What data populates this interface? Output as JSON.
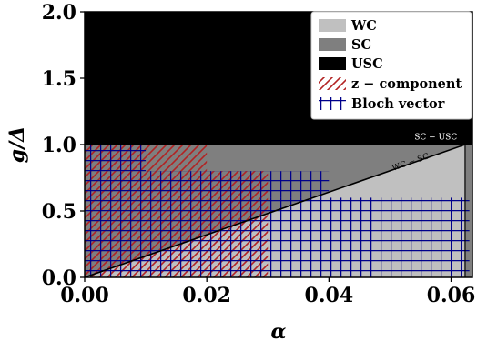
{
  "chart_data": {
    "type": "area",
    "xlabel": "α",
    "ylabel": "g/Δ",
    "xlim": [
      0,
      0.0635
    ],
    "ylim": [
      0,
      2.0
    ],
    "xticks": [
      "0.00",
      "0.02",
      "0.04",
      "0.06"
    ],
    "xtick_values": [
      0,
      0.02,
      0.04,
      0.06
    ],
    "yticks": [
      "0.0",
      "0.5",
      "1.0",
      "1.5",
      "2.0"
    ],
    "ytick_values": [
      0,
      0.5,
      1.0,
      1.5,
      2.0
    ],
    "grid": false,
    "legend_position": "top-right",
    "regions": [
      {
        "name": "WC",
        "color": "#c0c0c0"
      },
      {
        "name": "SC",
        "color": "#7f7f7f"
      },
      {
        "name": "USC",
        "color": "#000000"
      }
    ],
    "boundaries": {
      "usc_threshold_g": 1.0,
      "wc_sc_line": {
        "x": [
          0,
          0.0623
        ],
        "y": [
          0,
          1.0
        ]
      },
      "sc_usc_alpha": 0.0623
    },
    "series": [
      {
        "name": "z − component",
        "color": "#b22222",
        "pattern": "diagonal-hatch",
        "blocks": [
          {
            "x": [
              0,
              0.02
            ],
            "y": [
              0.8,
              1.0
            ]
          },
          {
            "x": [
              0,
              0.03
            ],
            "y": [
              0,
              0.8
            ]
          }
        ]
      },
      {
        "name": "Bloch vector",
        "color": "#00008b",
        "pattern": "grid-hatch",
        "blocks": [
          {
            "x": [
              0,
              0.01
            ],
            "y": [
              0.8,
              1.0
            ]
          },
          {
            "x": [
              0,
              0.04
            ],
            "y": [
              0.6,
              0.8
            ]
          },
          {
            "x": [
              0,
              0.063
            ],
            "y": [
              0,
              0.6
            ]
          }
        ]
      }
    ],
    "annotations": [
      {
        "text": "SC − USC",
        "x": 0.0575,
        "y": 1.03
      },
      {
        "text": "WC − SC",
        "x": 0.0535,
        "y": 0.85
      }
    ]
  }
}
